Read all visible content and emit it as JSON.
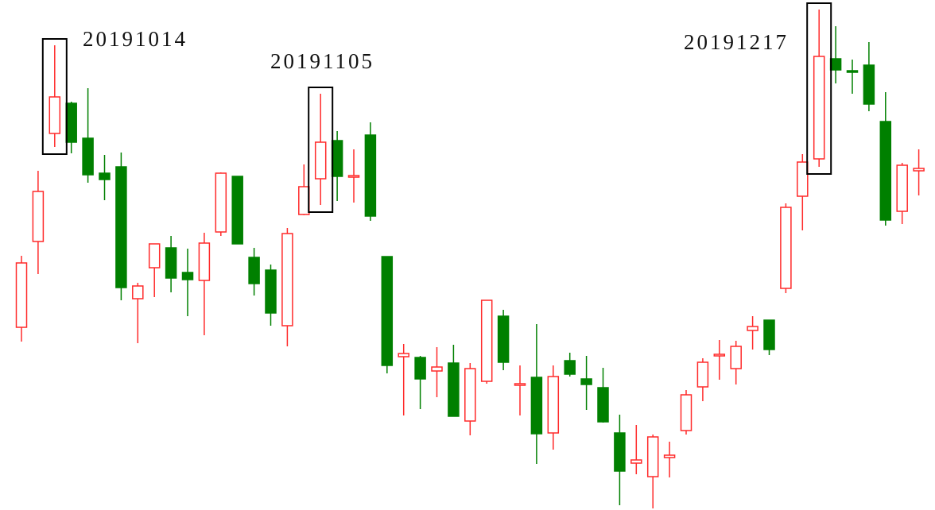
{
  "chart_data": {
    "type": "candlestick",
    "up_color": "#ff2a2a",
    "down_color": "#008000",
    "ylim": [
      0,
      642
    ],
    "open": [
      230,
      338,
      474,
      512,
      468,
      424,
      432,
      266,
      305,
      330,
      299,
      289,
      350,
      420,
      318,
      302,
      232,
      372,
      417,
      465,
      419,
      472,
      319,
      193,
      192,
      175,
      185,
      112,
      162,
      244,
      157,
      167,
      97,
      188,
      165,
      154,
      97,
      59,
      42,
      66,
      100,
      155,
      194,
      178,
      226,
      239,
      279,
      395,
      442,
      568,
      553,
      560,
      489,
      376,
      427
    ],
    "high": [
      320,
      427,
      585,
      514,
      531,
      447,
      450,
      286,
      335,
      345,
      329,
      349,
      425,
      420,
      330,
      309,
      355,
      435,
      524,
      477,
      454,
      488,
      319,
      209,
      194,
      205,
      208,
      185,
      264,
      252,
      182,
      234,
      182,
      198,
      194,
      179,
      120,
      107,
      95,
      86,
      151,
      191,
      214,
      213,
      244,
      239,
      386,
      448,
      630,
      609,
      567,
      589,
      526,
      437,
      454
    ],
    "low": [
      212,
      297,
      457,
      449,
      412,
      390,
      264,
      210,
      268,
      274,
      244,
      220,
      345,
      335,
      270,
      232,
      206,
      371,
      384,
      389,
      387,
      364,
      172,
      119,
      127,
      142,
      118,
      94,
      159,
      176,
      119,
      58,
      76,
      168,
      126,
      110,
      6,
      45,
      2,
      41,
      95,
      137,
      164,
      158,
      202,
      195,
      273,
      352,
      432,
      537,
      524,
      502,
      358,
      360,
      396
    ],
    "close": [
      311,
      401,
      520,
      463,
      422,
      416,
      280,
      282,
      335,
      292,
      290,
      336,
      424,
      335,
      285,
      248,
      348,
      407,
      463,
      420,
      421,
      370,
      182,
      197,
      165,
      180,
      118,
      178,
      264,
      186,
      159,
      96,
      168,
      171,
      158,
      111,
      49,
      63,
      92,
      69,
      145,
      186,
      196,
      206,
      231,
      202,
      381,
      438,
      571,
      554,
      551,
      511,
      365,
      434,
      430
    ],
    "annotations": [
      {
        "text": "20191014",
        "index": 2
      },
      {
        "text": "20191105",
        "index": 18
      },
      {
        "text": "20191217",
        "index": 48
      }
    ]
  }
}
